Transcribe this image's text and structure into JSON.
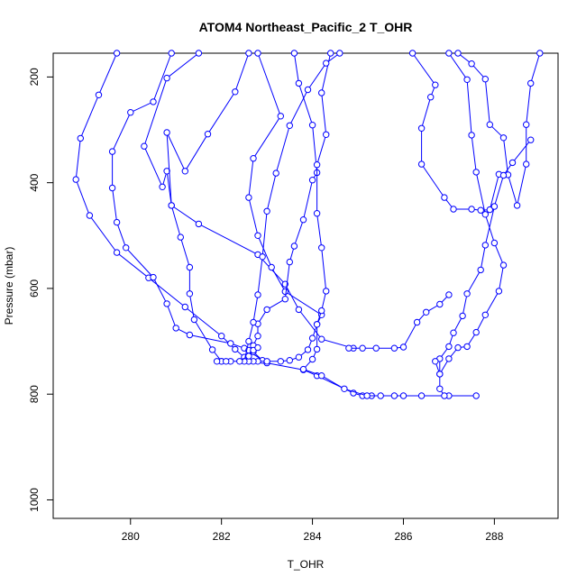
{
  "chart_data": {
    "type": "line",
    "title": "ATOM4 Northeast_Pacific_2 T_OHR",
    "xlabel": "T_OHR",
    "ylabel": "Pressure (mbar)",
    "xlim": [
      278.3,
      289.4
    ],
    "ylim": [
      1035,
      155
    ],
    "y_reversed": true,
    "x_ticks": [
      "280",
      "282",
      "284",
      "286",
      "288"
    ],
    "y_ticks": [
      "200",
      "400",
      "600",
      "800",
      "1000"
    ],
    "grid": false,
    "legend": "none",
    "color": "#0000ff",
    "marker": "open-circle",
    "series": [
      {
        "x": [
          279.7,
          279.3,
          278.9,
          278.8,
          279.1,
          279.7,
          280.4,
          281.2,
          282.0,
          282.3,
          282.5,
          282.6
        ],
        "y": [
          155,
          234,
          316,
          394,
          462,
          532,
          580,
          635,
          690,
          715,
          730,
          738
        ]
      },
      {
        "x": [
          280.9,
          280.5,
          280.0,
          279.6,
          279.6,
          279.7,
          279.9,
          280.5,
          280.8,
          281.0,
          281.3,
          282.2,
          282.5,
          283.0,
          283.8,
          284.1,
          284.9,
          285.1,
          285.3
        ],
        "y": [
          155,
          247,
          267,
          341,
          410,
          475,
          523,
          579,
          629,
          675,
          688,
          704,
          713,
          741,
          754,
          765,
          798,
          803,
          803
        ]
      },
      {
        "x": [
          281.5,
          280.8,
          280.3,
          280.7,
          280.8,
          280.9,
          281.1,
          281.3,
          281.3,
          281.4,
          281.8,
          282.0
        ],
        "y": [
          155,
          202,
          331,
          408,
          378,
          443,
          503,
          560,
          610,
          659,
          716,
          738
        ]
      },
      {
        "x": [
          282.6,
          282.3,
          281.7,
          281.2,
          280.8,
          280.9,
          281.5,
          282.8,
          283.4,
          283.7,
          284.2,
          284.9
        ],
        "y": [
          155,
          228,
          308,
          378,
          305,
          443,
          478,
          536,
          592,
          640,
          696,
          713
        ]
      },
      {
        "x": [
          282.8,
          283.3,
          282.7,
          282.6,
          282.8,
          283.1,
          283.4,
          284.2,
          284.1,
          284.1,
          284.0,
          283.8,
          284.2,
          284.7,
          285.2,
          285.5,
          285.8,
          286.0,
          286.4,
          287.0,
          287.6
        ],
        "y": [
          155,
          274,
          354,
          428,
          500,
          560,
          606,
          650,
          668,
          715,
          734,
          753,
          765,
          790,
          803,
          803,
          803,
          803,
          803,
          803,
          803
        ]
      },
      {
        "x": [
          283.6,
          283.7,
          284.0,
          284.1,
          284.0,
          283.8,
          283.6,
          283.5,
          283.4,
          283.0,
          282.8,
          282.8,
          282.7,
          282.6,
          282.7,
          282.9
        ],
        "y": [
          155,
          212,
          291,
          381,
          395,
          470,
          520,
          550,
          620,
          640,
          667,
          690,
          708,
          717,
          720,
          736
        ]
      },
      {
        "x": [
          284.4,
          284.2,
          284.3,
          284.1,
          284.1,
          284.2,
          284.3,
          284.2,
          284.1,
          284.0,
          283.9,
          283.7,
          283.5,
          283.3,
          283.0,
          282.8,
          282.7,
          282.6
        ],
        "y": [
          155,
          230,
          309,
          366,
          458,
          523,
          605,
          642,
          668,
          694,
          716,
          730,
          736,
          738,
          738,
          738,
          738,
          738
        ]
      },
      {
        "x": [
          284.6,
          284.3,
          283.9,
          283.5,
          283.2,
          283.0,
          282.9,
          282.8,
          282.7,
          282.6,
          282.5
        ],
        "y": [
          155,
          174,
          224,
          292,
          382,
          454,
          540,
          612,
          664,
          700,
          738
        ]
      },
      {
        "x": [
          282.2,
          282.0,
          281.9,
          282.1,
          282.4,
          282.6,
          282.7,
          282.8
        ],
        "y": [
          738,
          738,
          738,
          738,
          738,
          728,
          717,
          712
        ]
      },
      {
        "x": [
          284.8,
          285.1,
          285.4,
          285.8,
          286.0,
          286.3,
          286.5,
          286.8,
          287.0
        ],
        "y": [
          713,
          713,
          713,
          713,
          711,
          664,
          645,
          630,
          612
        ]
      },
      {
        "x": [
          286.2,
          286.7,
          286.6,
          286.4,
          286.4,
          286.9,
          287.1,
          287.5,
          287.7,
          287.9,
          288.1
        ],
        "y": [
          155,
          215,
          238,
          297,
          365,
          428,
          450,
          450,
          452,
          451,
          384
        ]
      },
      {
        "x": [
          287.2,
          287.5,
          287.8,
          287.9,
          288.2,
          288.3,
          288.5,
          288.7,
          288.7,
          288.8,
          289.0
        ],
        "y": [
          155,
          175,
          204,
          290,
          315,
          385,
          443,
          365,
          290,
          212,
          155
        ]
      },
      {
        "x": [
          288.8,
          288.4,
          288.2,
          288.0,
          287.8,
          287.7,
          287.4,
          287.3,
          287.1,
          287.0,
          286.8,
          286.8,
          286.8,
          286.9
        ],
        "y": [
          319,
          362,
          386,
          445,
          518,
          565,
          610,
          652,
          684,
          710,
          733,
          762,
          790,
          803
        ]
      },
      {
        "x": [
          287.0,
          287.4,
          287.5,
          287.6,
          287.8,
          288.0,
          288.2,
          288.1,
          287.8,
          287.6,
          287.4,
          287.2,
          287.0,
          286.8,
          286.7
        ],
        "y": [
          155,
          205,
          310,
          380,
          460,
          514,
          556,
          605,
          650,
          683,
          710,
          712,
          733,
          762,
          738
        ]
      }
    ]
  }
}
